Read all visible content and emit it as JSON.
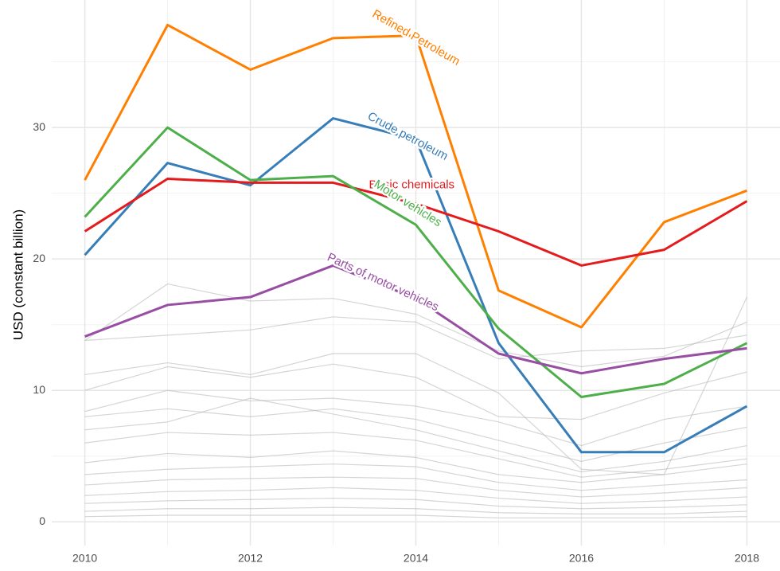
{
  "chart_data": {
    "type": "line",
    "y_label": "USD (constant billion)",
    "x": [
      2010,
      2011,
      2012,
      2013,
      2014,
      2015,
      2016,
      2017,
      2018
    ],
    "xlim": [
      2009.6,
      2018.4
    ],
    "xticks": [
      2010,
      2012,
      2014,
      2016,
      2018
    ],
    "xminor": [
      2011,
      2013,
      2015,
      2017
    ],
    "ylim": [
      -1.8,
      39.7
    ],
    "yticks": [
      0,
      10,
      20,
      30
    ],
    "yminor": [
      5,
      15,
      25,
      35
    ],
    "grid": true,
    "series": [
      {
        "name": "Refined Petroleum",
        "color": "#ff7f00",
        "values": [
          26.0,
          37.8,
          34.4,
          36.8,
          37.0,
          17.6,
          14.8,
          22.8,
          25.2
        ]
      },
      {
        "name": "Crude petroleum",
        "color": "#377eb8",
        "values": [
          20.3,
          27.3,
          25.6,
          30.7,
          29.1,
          13.6,
          5.3,
          5.3,
          8.8
        ]
      },
      {
        "name": "Basic chemicals",
        "color": "#e41a1c",
        "values": [
          22.1,
          26.1,
          25.8,
          25.8,
          24.2,
          22.1,
          19.5,
          20.7,
          24.4
        ]
      },
      {
        "name": "Motor vehicles",
        "color": "#4daf4a",
        "values": [
          23.2,
          30.0,
          26.0,
          26.3,
          22.6,
          14.7,
          9.5,
          10.5,
          13.6
        ]
      },
      {
        "name": "Parts of motor vehicles",
        "color": "#984ea3",
        "values": [
          14.1,
          16.5,
          17.1,
          19.5,
          17.0,
          12.8,
          11.3,
          12.4,
          13.2
        ]
      }
    ],
    "background_color": "#b3b3b3",
    "background_series": [
      [
        13.8,
        18.1,
        16.8,
        17.0,
        15.8,
        13.0,
        11.8,
        12.6,
        15.2
      ],
      [
        13.8,
        14.2,
        14.6,
        15.6,
        15.2,
        12.4,
        13.0,
        13.2,
        14.2
      ],
      [
        11.2,
        12.1,
        11.2,
        12.8,
        12.8,
        9.8,
        4.0,
        3.6,
        17.1
      ],
      [
        10.0,
        11.8,
        11.0,
        12.0,
        11.0,
        8.0,
        7.8,
        9.8,
        11.4
      ],
      [
        8.4,
        10.0,
        9.2,
        9.4,
        8.8,
        7.6,
        5.8,
        7.8,
        8.8
      ],
      [
        8.0,
        8.6,
        8.0,
        8.6,
        7.8,
        6.2,
        4.6,
        6.0,
        7.2
      ],
      [
        7.0,
        7.6,
        9.4,
        8.2,
        7.0,
        5.4,
        3.8,
        4.6,
        5.8
      ],
      [
        6.0,
        6.8,
        6.6,
        6.8,
        6.2,
        4.8,
        3.4,
        4.0,
        4.8
      ],
      [
        4.5,
        5.2,
        4.9,
        5.4,
        4.9,
        3.6,
        3.0,
        3.6,
        4.4
      ],
      [
        3.6,
        4.0,
        4.2,
        4.4,
        4.2,
        3.0,
        2.4,
        2.8,
        3.2
      ],
      [
        2.8,
        3.2,
        3.3,
        3.4,
        3.3,
        2.4,
        1.9,
        2.2,
        2.6
      ],
      [
        2.0,
        2.3,
        2.4,
        2.6,
        2.4,
        1.8,
        1.4,
        1.6,
        1.9
      ],
      [
        1.4,
        1.6,
        1.7,
        1.8,
        1.7,
        1.2,
        1.0,
        1.1,
        1.3
      ],
      [
        0.8,
        1.0,
        1.0,
        1.1,
        1.0,
        0.7,
        0.6,
        0.6,
        0.8
      ],
      [
        0.4,
        0.5,
        0.5,
        0.5,
        0.5,
        0.3,
        0.3,
        0.3,
        0.4
      ]
    ]
  }
}
